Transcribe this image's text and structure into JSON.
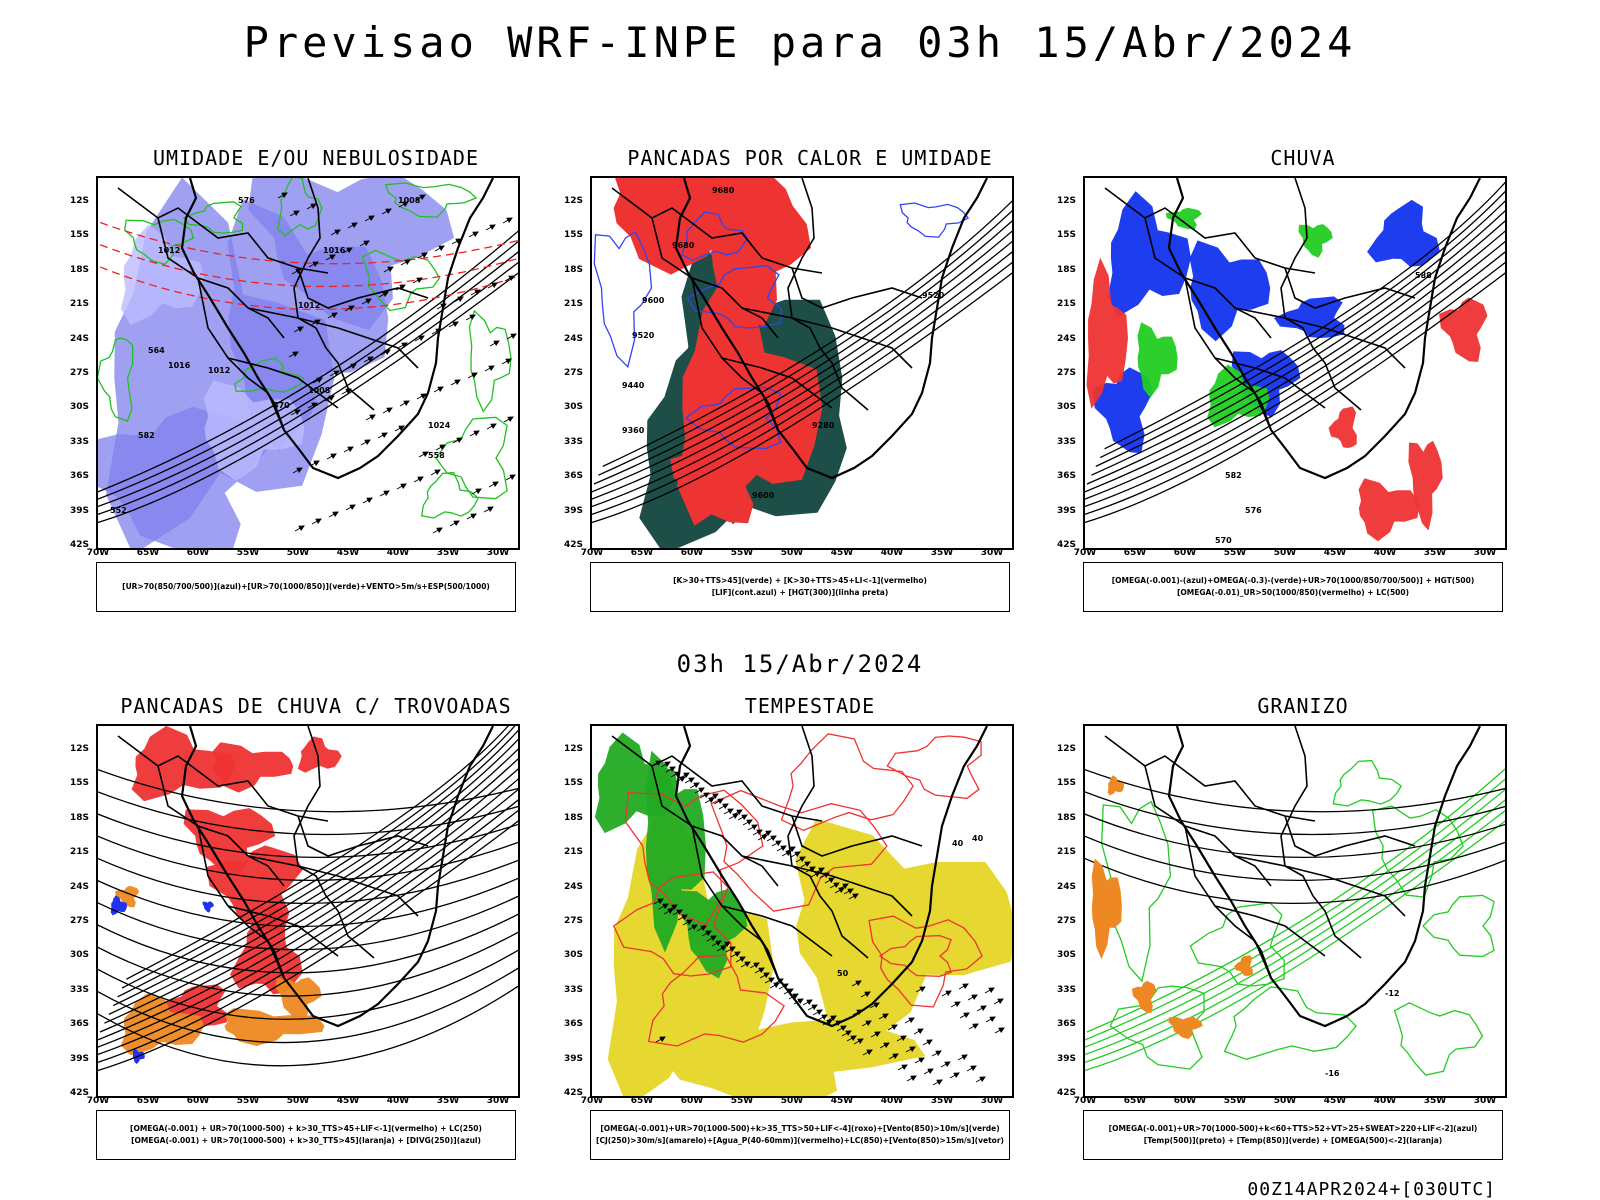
{
  "header": {
    "title": "Previsao WRF-INPE  para 03h 15/Abr/2024"
  },
  "middle_date": "03h 15/Abr/2024",
  "footer": "00Z14APR2024+[030UTC]",
  "axes": {
    "lat_labels": [
      "12S",
      "15S",
      "18S",
      "21S",
      "24S",
      "27S",
      "30S",
      "33S",
      "36S",
      "39S",
      "42S"
    ],
    "lon_labels": [
      "70W",
      "65W",
      "60W",
      "55W",
      "50W",
      "45W",
      "40W",
      "35W",
      "30W"
    ]
  },
  "panels": [
    {
      "title": "UMIDADE E/OU NEBULOSIDADE",
      "legend": [
        "[UR>70(850/700/500)](azul)+[UR>70(1000/850)](verde)+VENTO>5m/s+ESP(500/1000)"
      ],
      "contour_labels": [
        "1012",
        "1008",
        "1016",
        "1012",
        "1008",
        "1016",
        "1012",
        "1024",
        "570",
        "576",
        "564",
        "582",
        "558",
        "552"
      ],
      "colors": {
        "blue_shade": "#8080ee",
        "green": "#22c022",
        "red_dash": "#ee2222"
      }
    },
    {
      "title": "PANCADAS POR CALOR E UMIDADE",
      "legend": [
        "[K>30+TTS>45](verde) + [K>30+TTS>45+LI<-1](vermelho)",
        "[LIF](cont.azul) + [HGT(300)](linha preta)"
      ],
      "contour_labels": [
        "9680",
        "9680",
        "9600",
        "9520",
        "9440",
        "9360",
        "9280",
        "9600",
        "9520"
      ],
      "colors": {
        "red": "#ee3333",
        "dark_green": "#1e4e48",
        "blue": "#3344ee"
      }
    },
    {
      "title": "CHUVA",
      "legend": [
        "[OMEGA(-0.001)-(azul)+OMEGA(-0.3)-(verde)+UR>70(1000/850/700/500)] + HGT(500)",
        "[OMEGA(-0.01)_UR>50(1000/850)(vermelho) + LC(500)"
      ],
      "contour_labels": [
        "588",
        "582",
        "576",
        "570"
      ],
      "colors": {
        "blue": "#1133ee",
        "green": "#22cc22",
        "red": "#ee3333"
      }
    },
    {
      "title": "PANCADAS DE CHUVA C/ TROVOADAS",
      "legend": [
        "[OMEGA(-0.001) + UR>70(1000-500) + k>30_TTS>45+LIF<-1](vermelho) + LC(250)",
        "[OMEGA(-0.001) + UR>70(1000-500) + k>30_TTS>45](laranja) + [DIVG(250)](azul)"
      ],
      "contour_labels": [],
      "colors": {
        "red": "#ee3333",
        "orange": "#ee8822",
        "blue": "#2233ee"
      }
    },
    {
      "title": "TEMPESTADE",
      "legend": [
        "[OMEGA(-0.001)+UR>70(1000-500)+k>35_TTS>50+LIF<-4](roxo)+[Vento(850)>10m/s](verde)",
        "[CJ(250)>30m/s](amarelo)+[Agua_P(40-60mm)](vermelho)+LC(850)+[Vento(850)>15m/s](vetor)"
      ],
      "contour_labels": [
        "40",
        "40",
        "50"
      ],
      "colors": {
        "yellow": "#e6d830",
        "green": "#22aa22",
        "red": "#ee3333"
      }
    },
    {
      "title": "GRANIZO",
      "legend": [
        "[OMEGA(-0.001)+UR>70(1000-500)+k<60+TTS>52+VT>25+SWEAT>220+LIF<-2](azul)",
        "[Temp(500)](preto) + [Temp(850)](verde) + [OMEGA(500)<-2](laranja)"
      ],
      "contour_labels": [
        "-12",
        "-16"
      ],
      "colors": {
        "green": "#22cc22",
        "orange": "#ee8822",
        "black": "#000000"
      }
    }
  ]
}
